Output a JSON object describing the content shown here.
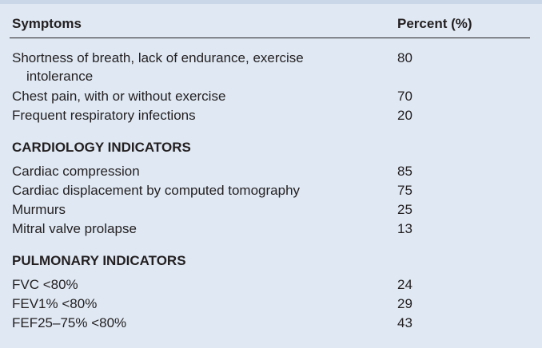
{
  "table": {
    "headers": {
      "symptoms": "Symptoms",
      "percent": "Percent (%)"
    },
    "symptoms": [
      {
        "label": "Shortness of breath, lack of endurance, exercise",
        "label_cont": "intolerance",
        "value": "80"
      },
      {
        "label": "Chest pain, with or without exercise",
        "value": "70"
      },
      {
        "label": "Frequent respiratory infections",
        "value": "20"
      }
    ],
    "cardiology": {
      "title": "CARDIOLOGY INDICATORS",
      "rows": [
        {
          "label": "Cardiac compression",
          "value": "85"
        },
        {
          "label": "Cardiac displacement by computed tomography",
          "value": "75"
        },
        {
          "label": "Murmurs",
          "value": "25"
        },
        {
          "label": "Mitral valve prolapse",
          "value": "13"
        }
      ]
    },
    "pulmonary": {
      "title": "PULMONARY INDICATORS",
      "rows": [
        {
          "label": "FVC <80%",
          "value": "24"
        },
        {
          "label": "FEV1% <80%",
          "value": "29"
        },
        {
          "label": "FEF25–75% <80%",
          "value": "43"
        }
      ]
    }
  }
}
